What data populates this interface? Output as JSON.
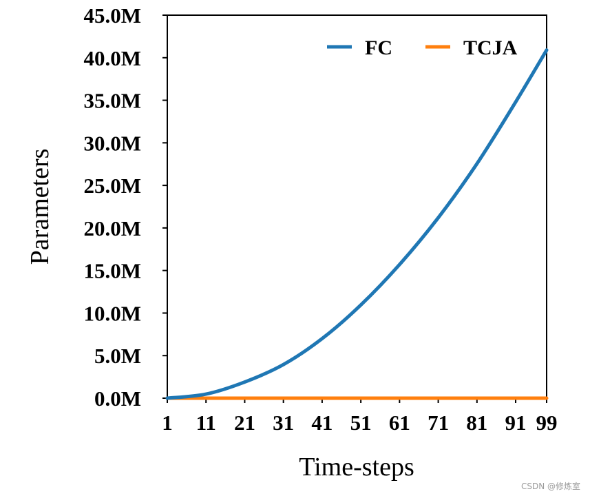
{
  "chart_data": {
    "type": "line",
    "xlabel": "Time-steps",
    "ylabel": "Parameters",
    "xlim": [
      1,
      99
    ],
    "ylim": [
      0,
      45000000
    ],
    "x_ticks": [
      1,
      11,
      21,
      31,
      41,
      51,
      61,
      71,
      81,
      91,
      99
    ],
    "y_ticks": [
      "0.0M",
      "5.0M",
      "10.0M",
      "15.0M",
      "20.0M",
      "25.0M",
      "30.0M",
      "35.0M",
      "40.0M",
      "45.0M"
    ],
    "y_tick_values": [
      0,
      5000000,
      10000000,
      15000000,
      20000000,
      25000000,
      30000000,
      35000000,
      40000000,
      45000000
    ],
    "grid": false,
    "legend_position": "top-right",
    "series": [
      {
        "name": "FC",
        "color": "#1f77b4",
        "x": [
          1,
          11,
          21,
          31,
          41,
          51,
          61,
          71,
          81,
          91,
          99
        ],
        "values": [
          0,
          480000,
          1900000,
          3950000,
          7000000,
          10950000,
          15700000,
          21200000,
          27550000,
          34800000,
          40900000
        ]
      },
      {
        "name": "TCJA",
        "color": "#ff7f0e",
        "x": [
          1,
          11,
          21,
          31,
          41,
          51,
          61,
          71,
          81,
          91,
          99
        ],
        "values": [
          0,
          0,
          0,
          0,
          0,
          0,
          0,
          0,
          0,
          0,
          0
        ]
      }
    ]
  },
  "watermark": "CSDN @修炼室"
}
